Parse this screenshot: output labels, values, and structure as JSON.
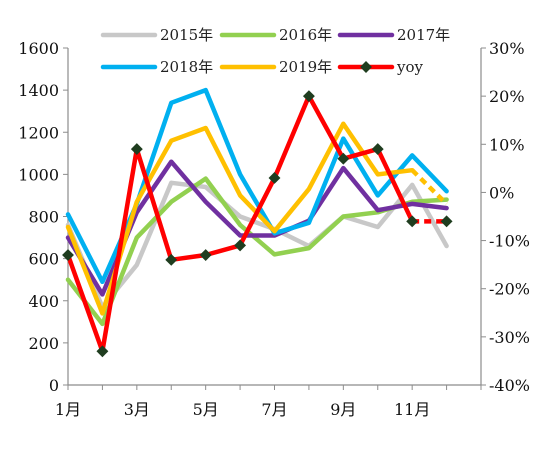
{
  "chart_data": {
    "type": "line",
    "title": "",
    "xlabel": "",
    "ylabel": "",
    "categories": [
      "1月",
      "2月",
      "3月",
      "4月",
      "5月",
      "6月",
      "7月",
      "8月",
      "9月",
      "10月",
      "11月",
      "12月"
    ],
    "x_tick_labels": [
      "1月",
      "3月",
      "5月",
      "7月",
      "9月",
      "11月"
    ],
    "y_left": {
      "range": [
        0,
        1600
      ],
      "ticks": [
        "0",
        "200",
        "400",
        "600",
        "800",
        "1000",
        "1200",
        "1400",
        "1600"
      ]
    },
    "y_right": {
      "range": [
        -40,
        30
      ],
      "ticks": [
        "-40%",
        "-30%",
        "-20%",
        "-10%",
        "0%",
        "10%",
        "20%",
        "30%"
      ]
    },
    "grid": false,
    "legend_position": "top",
    "series": [
      {
        "name": "2015年",
        "axis": "left",
        "color": "#c8c8c8",
        "dashed_last": false,
        "values": [
          760,
          370,
          570,
          960,
          940,
          800,
          740,
          660,
          800,
          750,
          950,
          660
        ]
      },
      {
        "name": "2016年",
        "axis": "left",
        "color": "#92d050",
        "dashed_last": false,
        "values": [
          500,
          290,
          700,
          870,
          980,
          760,
          620,
          650,
          800,
          820,
          870,
          880
        ]
      },
      {
        "name": "2017年",
        "axis": "left",
        "color": "#7030a0",
        "dashed_last": false,
        "values": [
          700,
          430,
          820,
          1060,
          870,
          710,
          710,
          780,
          1030,
          830,
          860,
          840
        ]
      },
      {
        "name": "2018年",
        "axis": "left",
        "color": "#00b0f0",
        "dashed_last": false,
        "values": [
          810,
          490,
          860,
          1340,
          1400,
          1000,
          720,
          770,
          1170,
          900,
          1090,
          920
        ]
      },
      {
        "name": "2019年",
        "axis": "left",
        "color": "#ffc000",
        "dashed_last": true,
        "values": [
          750,
          340,
          870,
          1160,
          1220,
          900,
          730,
          930,
          1240,
          1000,
          1020,
          860
        ]
      },
      {
        "name": "yoy",
        "axis": "right",
        "color": "#ff0000",
        "marker_color": "#1f3d1f",
        "dashed_last": true,
        "values": [
          -13,
          -33,
          9,
          -14,
          -13,
          -11,
          3,
          20,
          7,
          9,
          -6,
          -6
        ]
      }
    ]
  }
}
